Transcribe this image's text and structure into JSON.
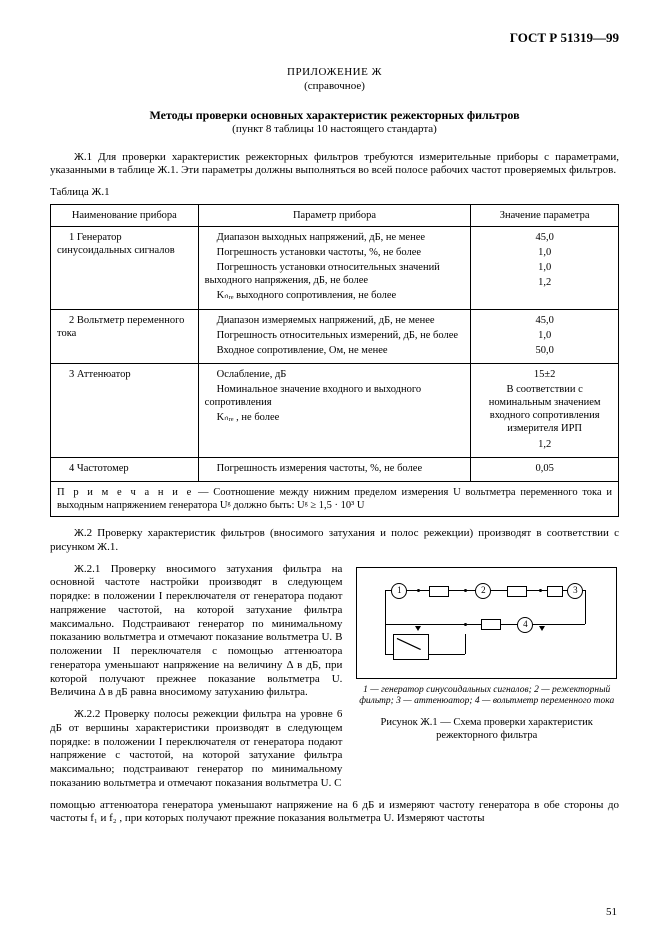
{
  "header": {
    "standard_id": "ГОСТ Р 51319—99"
  },
  "appendix": {
    "title": "ПРИЛОЖЕНИЕ Ж",
    "subtitle": "(справочное)",
    "heading": "Методы проверки основных характеристик режекторных фильтров",
    "subheading": "(пункт 8 таблицы 10 настоящего стандарта)"
  },
  "p1": "Ж.1 Для проверки характеристик режекторных фильтров требуются измерительные приборы с параметрами, указанными в таблице Ж.1. Эти параметры должны выполняться во всей полосе рабочих частот проверяемых фильтров.",
  "table_label": "Таблица Ж.1",
  "table": {
    "head": {
      "c1": "Наименование прибора",
      "c2": "Параметр прибора",
      "c3": "Значение параметра"
    },
    "rows": [
      {
        "name": "1 Генератор синусоидальных сигналов",
        "params": [
          {
            "t": "Диапазон выходных напряжений, дБ, не менее",
            "v": "45,0"
          },
          {
            "t": "Погрешность установки частоты, %, не более",
            "v": "1,0"
          },
          {
            "t": "Погрешность установки относительных значений выходного напряжения, дБ, не более",
            "v": "1,0"
          },
          {
            "t": "Kₙᵣₑ  выходного сопротивления, не более",
            "v": "1,2"
          }
        ]
      },
      {
        "name": "2 Вольтметр переменного тока",
        "params": [
          {
            "t": "Диапазон измеряемых напряжений, дБ, не менее",
            "v": "45,0"
          },
          {
            "t": "Погрешность относительных измерений, дБ, не более",
            "v": "1,0"
          },
          {
            "t": "Входное сопротивление, Ом, не менее",
            "v": "50,0"
          }
        ]
      },
      {
        "name": "3 Аттенюатор",
        "params": [
          {
            "t": "Ослабление, дБ",
            "v": "15±2"
          },
          {
            "t": "Номинальное значение входного и выходного сопротивления",
            "v": "В соответствии с номинальным значением входного сопротивления измерителя ИРП"
          },
          {
            "t": "Kₙᵣₑ , не более",
            "v": "1,2"
          }
        ]
      },
      {
        "name": "4 Частотомер",
        "params": [
          {
            "t": "Погрешность измерения частоты, %, не более",
            "v": "0,05"
          }
        ]
      }
    ],
    "note_label": "П р и м е ч а н и е",
    "note": " — Соотношение между нижним пределом измерения U вольтметра переменного тока и выходным напряжением генератора Uᵍ должно быть: Uᵍ ≥ 1,5 · 10³  U"
  },
  "p2": "Ж.2 Проверку характеристик фильтров (вносимого затухания и полос режекции) производят в соответствии с рисунком Ж.1.",
  "left": {
    "p3": "Ж.2.1 Проверку вносимого затухания фильтра на основной частоте настройки производят в следующем порядке: в положении I переключателя от генератора подают напряжение частотой, на которой затухание фильтра максимально. Подстраивают генератор по минимальному показанию вольтметра и отмечают показание вольтметра U. В положении II переключателя с помощью аттенюатора генератора уменьшают напряжение на величину Δ в дБ, при которой получают прежнее показание вольтметра U. Величина Δ в дБ равна вносимому затуханию фильтра.",
    "p4": "Ж.2.2 Проверку полосы режекции фильтра на уровне 6 дБ от вершины характеристики производят в следующем порядке: в положении I  переключателя от генератора подают напряжение с частотой, на которой затухание фильтра максимально; подстраивают генератор по минимальному показанию вольтметра и отмечают показания вольтметра U. С"
  },
  "tail": "помощью аттенюатора генератора уменьшают напряжение на 6 дБ и измеряют частоту генератора в обе стороны до частоты f₁ и f₂ , при которых получают прежние показания вольтметра U. Измеряют частоты",
  "figure": {
    "legend": "1 — генератор синусоидальных сигналов; 2 — режекторный фильтр; 3 — аттенюатор; 4 — вольтметр переменного тока",
    "caption": "Рисунок Ж.1 — Схема проверки характеристик режекторного фильтра",
    "nodes": {
      "n1": "1",
      "n2": "2",
      "n3": "3",
      "n4": "4"
    }
  },
  "page_number": "51"
}
